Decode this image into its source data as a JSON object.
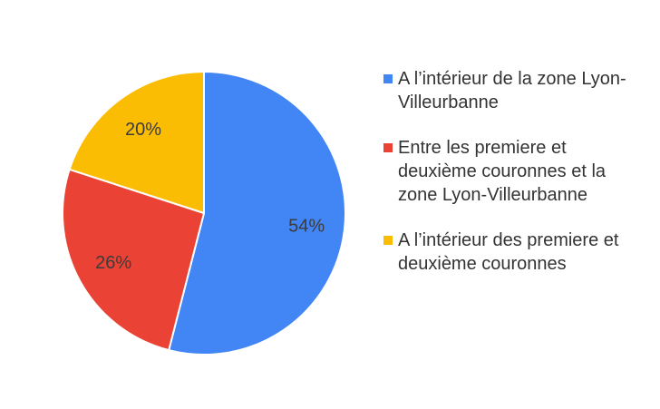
{
  "chart_data": {
    "type": "pie",
    "title": "",
    "legend_position": "right",
    "slices": [
      {
        "name": "A l’intérieur de la zone Lyon-Villeurbanne",
        "value": 54,
        "label": "54%",
        "color": "#4285f4"
      },
      {
        "name": "Entre les premiere et deuxième couronnes et la zone Lyon-Villeurbanne",
        "value": 26,
        "label": "26%",
        "color": "#ea4335"
      },
      {
        "name": "A l’intérieur des premiere et deuxième couronnes",
        "value": 20,
        "label": "20%",
        "color": "#fbbc04"
      }
    ]
  }
}
